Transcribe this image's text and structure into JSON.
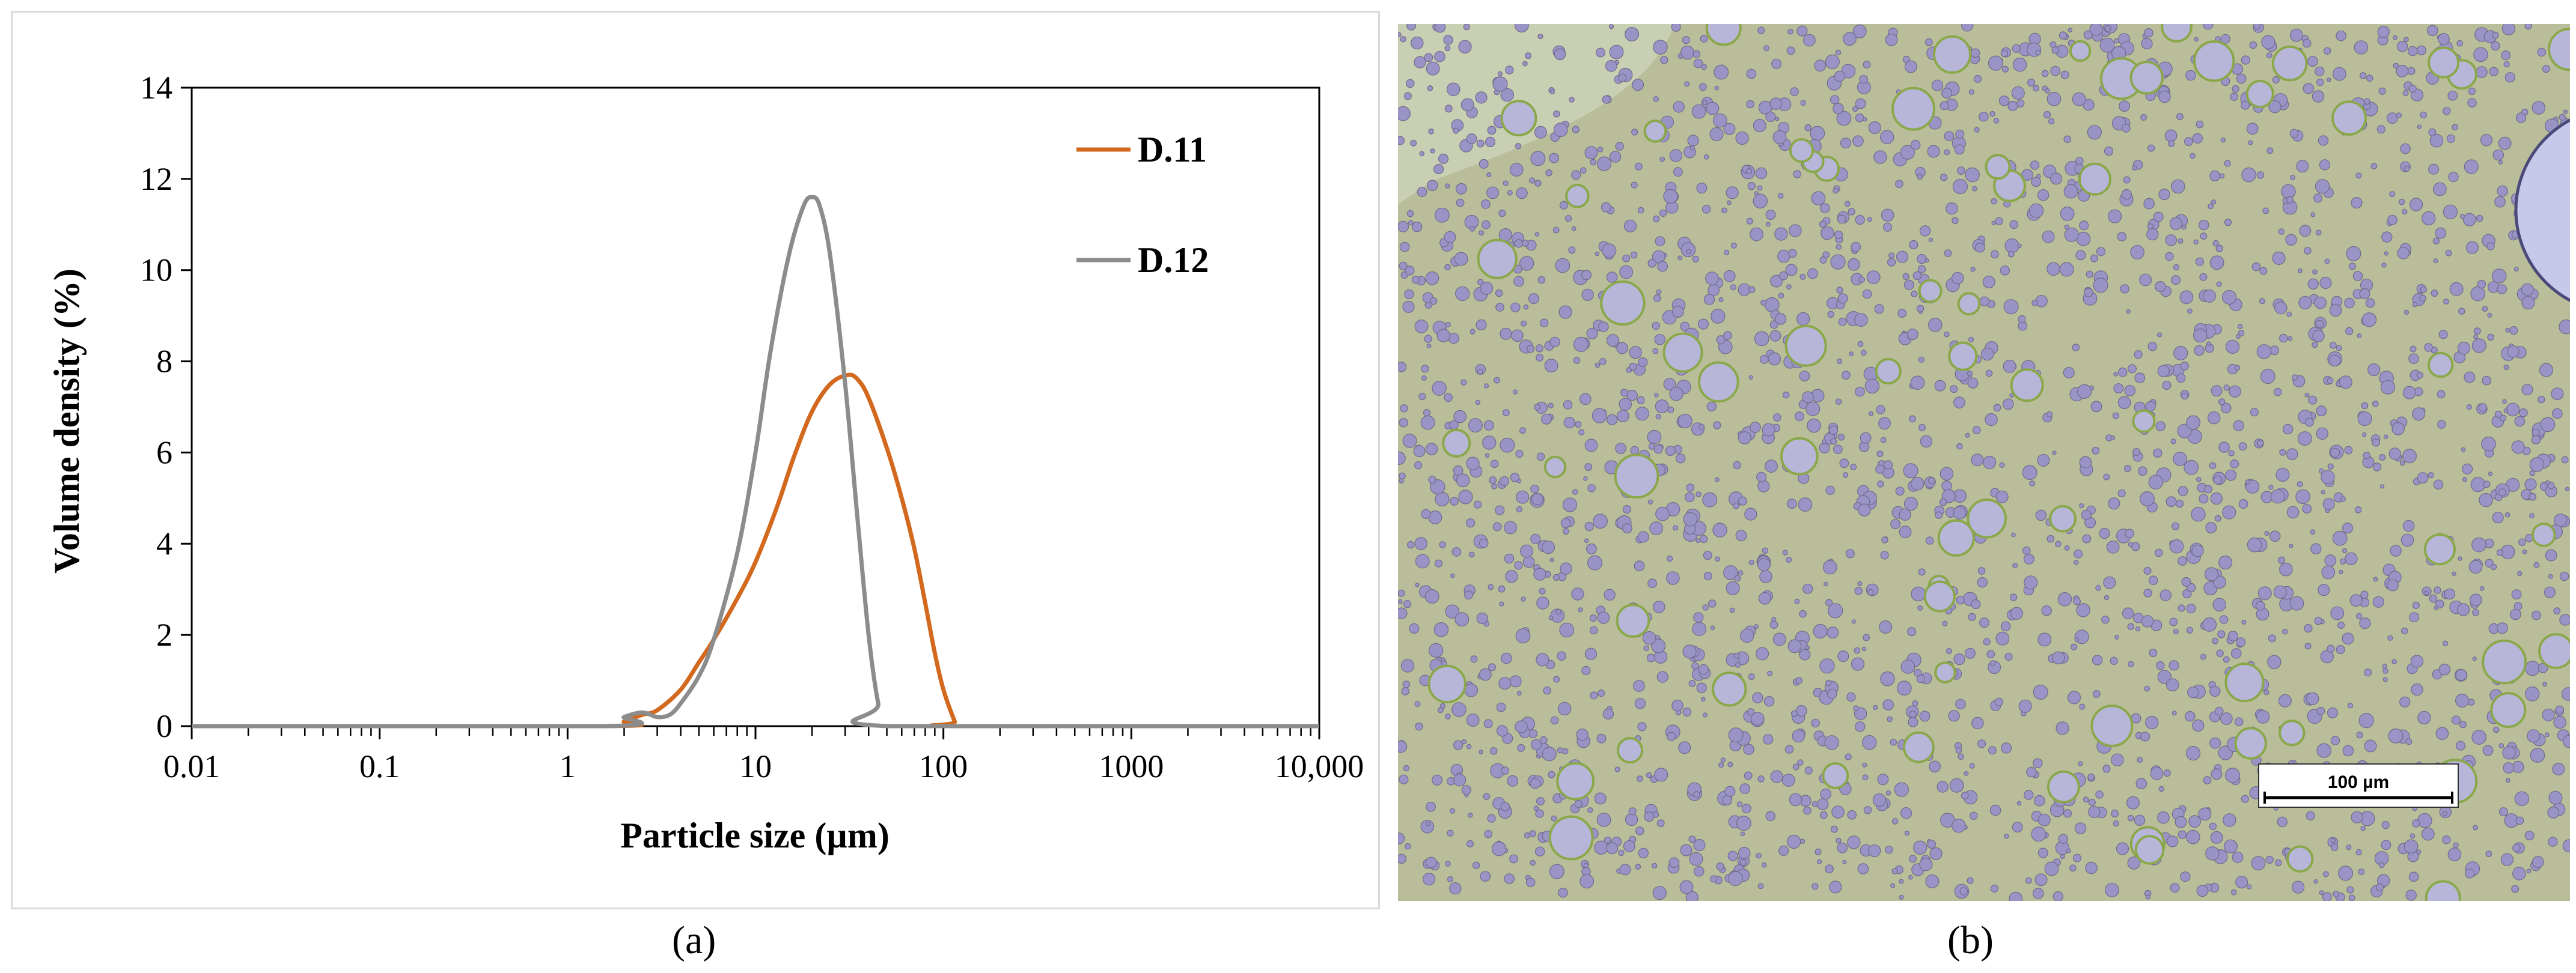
{
  "chart_data": {
    "type": "line",
    "xscale": "log",
    "xlim": [
      0.01,
      10000
    ],
    "ylim": [
      0,
      14
    ],
    "xlabel": "Particle size (µm)",
    "ylabel": "Volume density (%)",
    "x_tick_labels": [
      "0.01",
      "0.1",
      "1",
      "10",
      "100",
      "1000",
      "10,000"
    ],
    "x_tick_values": [
      0.01,
      0.1,
      1,
      10,
      100,
      1000,
      10000
    ],
    "y_tick_labels": [
      "0",
      "2",
      "4",
      "6",
      "8",
      "10",
      "12",
      "14"
    ],
    "y_tick_values": [
      0,
      2,
      4,
      6,
      8,
      10,
      12,
      14
    ],
    "grid": false,
    "legend_position": "top-right",
    "series": [
      {
        "name": "D.11",
        "color": "#D2691E",
        "x": [
          0.01,
          1.6,
          2.0,
          2.5,
          3.0,
          4.0,
          5.0,
          6.0,
          8.0,
          10.0,
          13.0,
          16.0,
          20.0,
          25.0,
          31.0,
          35.0,
          40.0,
          50.0,
          60.0,
          70.0,
          80.0,
          90.0,
          100.0,
          115.0,
          120.0,
          10000
        ],
        "y": [
          0,
          0,
          0.1,
          0.25,
          0.35,
          0.8,
          1.4,
          1.9,
          2.8,
          3.6,
          4.8,
          5.9,
          6.9,
          7.5,
          7.7,
          7.6,
          7.2,
          6.1,
          5.0,
          3.9,
          2.7,
          1.6,
          0.8,
          0.1,
          0,
          0
        ]
      },
      {
        "name": "D.12",
        "color": "#8C8C8C",
        "x": [
          0.01,
          1.6,
          2.0,
          2.5,
          3.0,
          3.5,
          4.0,
          5.0,
          6.0,
          8.0,
          10.0,
          12.0,
          15.0,
          18.0,
          20.0,
          22.0,
          25.0,
          30.0,
          35.0,
          40.0,
          45.0,
          50.0,
          10000
        ],
        "y": [
          0,
          0,
          0.2,
          0.3,
          0.2,
          0.25,
          0.5,
          1.1,
          1.9,
          3.8,
          6.0,
          8.2,
          10.3,
          11.4,
          11.6,
          11.4,
          10.3,
          7.5,
          4.5,
          2.0,
          0.5,
          0,
          0
        ]
      }
    ]
  },
  "micrograph": {
    "scale_bar_label": "100 µm",
    "colors": {
      "background": "#b9bd9a",
      "droplet_fill": "#9a94c6",
      "droplet_rim": "#8aa84a",
      "clear_region": "#c9cfb2"
    }
  },
  "captions": {
    "a": "(a)",
    "b": "(b)"
  }
}
